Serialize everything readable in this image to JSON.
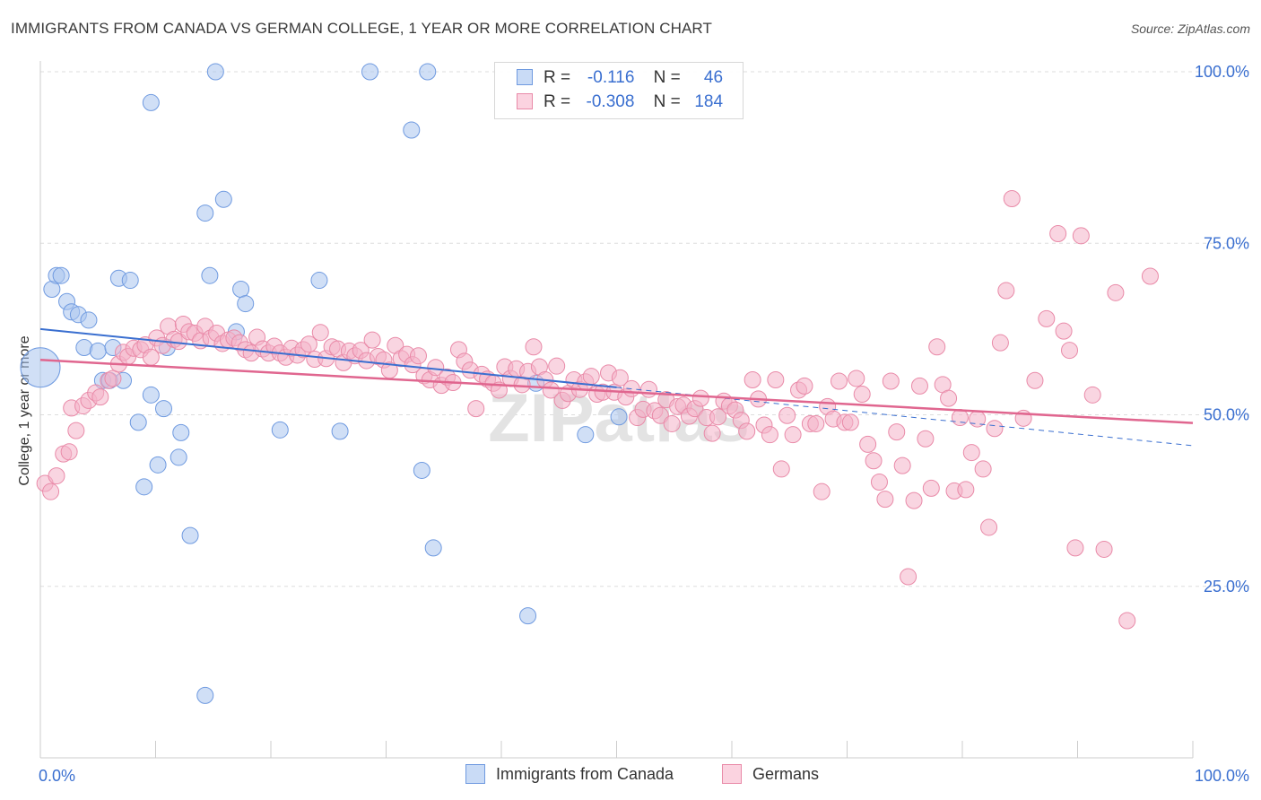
{
  "title": "IMMIGRANTS FROM CANADA VS GERMAN COLLEGE, 1 YEAR OR MORE CORRELATION CHART",
  "source": "Source: ZipAtlas.com",
  "watermark": "ZIPatlas",
  "legend_top": {
    "rows": [
      {
        "r_label": "R =",
        "r_value": "-0.116",
        "n_label": "N =",
        "n_value": "46",
        "color": "#a9c5ef"
      },
      {
        "r_label": "R =",
        "r_value": "-0.308",
        "n_label": "N =",
        "n_value": "184",
        "color": "#f4b3c8"
      }
    ]
  },
  "legend_bottom": {
    "items": [
      {
        "label": "Immigrants from Canada",
        "color": "#a9c5ef"
      },
      {
        "label": "Germans",
        "color": "#f4b3c8"
      }
    ]
  },
  "colors": {
    "blue_fill": "#a9c5ef",
    "blue_stroke": "#6f9ae0",
    "blue_line": "#3a6fd0",
    "pink_fill": "#f4b3c8",
    "pink_stroke": "#e98aa8",
    "pink_line": "#e0668f",
    "tick_text": "#3a6fd0",
    "grid": "#dddddd"
  },
  "chart_data": {
    "type": "scatter",
    "title": "IMMIGRANTS FROM CANADA VS GERMAN COLLEGE, 1 YEAR OR MORE CORRELATION CHART",
    "xlabel": "",
    "ylabel": "College, 1 year or more",
    "xlim": [
      0,
      100
    ],
    "ylim": [
      0,
      100
    ],
    "x_tick_labels": [
      "0.0%",
      "100.0%"
    ],
    "y_tick_labels": [
      "25.0%",
      "50.0%",
      "75.0%",
      "100.0%"
    ],
    "y_ticks": [
      25,
      50,
      75,
      100
    ],
    "grid": true,
    "series": [
      {
        "name": "Immigrants from Canada",
        "trend": {
          "x": [
            0,
            50
          ],
          "y": [
            62.5,
            54.0
          ],
          "dashed_to": [
            100,
            45.5
          ]
        },
        "points": [
          [
            0,
            56.9
          ],
          [
            1,
            68.3
          ],
          [
            1.4,
            70.3
          ],
          [
            1.8,
            70.3
          ],
          [
            2.3,
            66.5
          ],
          [
            2.7,
            65.0
          ],
          [
            3.3,
            64.6
          ],
          [
            4.2,
            63.8
          ],
          [
            3.8,
            59.8
          ],
          [
            5,
            59.3
          ],
          [
            6.3,
            59.8
          ],
          [
            5.4,
            55.0
          ],
          [
            6,
            55.0
          ],
          [
            7.2,
            55.0
          ],
          [
            6.8,
            69.9
          ],
          [
            7.8,
            69.6
          ],
          [
            8.5,
            48.9
          ],
          [
            9,
            39.5
          ],
          [
            9.6,
            52.9
          ],
          [
            9.6,
            95.5
          ],
          [
            10.2,
            42.7
          ],
          [
            10.7,
            50.9
          ],
          [
            11,
            59.8
          ],
          [
            12,
            43.8
          ],
          [
            12.2,
            47.4
          ],
          [
            13,
            32.4
          ],
          [
            14.3,
            79.4
          ],
          [
            14.7,
            70.3
          ],
          [
            15.2,
            100
          ],
          [
            15.9,
            81.4
          ],
          [
            17,
            62.1
          ],
          [
            17.4,
            68.3
          ],
          [
            17.8,
            66.2
          ],
          [
            20.8,
            47.8
          ],
          [
            24.2,
            69.6
          ],
          [
            26,
            47.6
          ],
          [
            28.6,
            100
          ],
          [
            32.2,
            91.5
          ],
          [
            33.1,
            41.9
          ],
          [
            33.6,
            100
          ],
          [
            34.1,
            30.6
          ],
          [
            42.3,
            20.7
          ],
          [
            43,
            54.6
          ],
          [
            47.3,
            47.1
          ],
          [
            50.2,
            49.7
          ],
          [
            14.3,
            9.1
          ]
        ]
      },
      {
        "name": "Germans",
        "trend": {
          "x": [
            0,
            100
          ],
          "y": [
            58.0,
            48.8
          ]
        },
        "points": [
          [
            0.4,
            40.0
          ],
          [
            0.9,
            38.8
          ],
          [
            1.4,
            41.1
          ],
          [
            2,
            44.3
          ],
          [
            2.5,
            44.6
          ],
          [
            2.7,
            51.0
          ],
          [
            3.1,
            47.7
          ],
          [
            3.7,
            51.3
          ],
          [
            4.2,
            52.1
          ],
          [
            4.8,
            53.2
          ],
          [
            5.2,
            52.6
          ],
          [
            5.9,
            55.0
          ],
          [
            6.3,
            55.3
          ],
          [
            6.8,
            57.4
          ],
          [
            7.2,
            59.1
          ],
          [
            7.6,
            58.5
          ],
          [
            8.1,
            59.7
          ],
          [
            8.7,
            59.5
          ],
          [
            9.1,
            60.2
          ],
          [
            9.6,
            58.4
          ],
          [
            10.1,
            61.2
          ],
          [
            10.6,
            60.1
          ],
          [
            11.1,
            62.9
          ],
          [
            11.6,
            61.0
          ],
          [
            12,
            60.7
          ],
          [
            12.4,
            63.2
          ],
          [
            12.9,
            62.1
          ],
          [
            13.4,
            61.9
          ],
          [
            13.9,
            60.8
          ],
          [
            14.3,
            62.9
          ],
          [
            14.8,
            61.2
          ],
          [
            15.3,
            61.9
          ],
          [
            15.8,
            60.4
          ],
          [
            16.3,
            60.9
          ],
          [
            16.8,
            61.2
          ],
          [
            17.3,
            60.5
          ],
          [
            17.8,
            59.5
          ],
          [
            18.3,
            59.0
          ],
          [
            18.8,
            61.3
          ],
          [
            19.3,
            59.6
          ],
          [
            19.8,
            59.0
          ],
          [
            20.3,
            60.0
          ],
          [
            20.8,
            59.0
          ],
          [
            21.3,
            58.4
          ],
          [
            21.8,
            59.7
          ],
          [
            22.3,
            58.7
          ],
          [
            22.8,
            59.5
          ],
          [
            23.3,
            60.3
          ],
          [
            23.8,
            58.1
          ],
          [
            24.3,
            62.0
          ],
          [
            24.8,
            58.2
          ],
          [
            25.3,
            59.9
          ],
          [
            25.8,
            59.6
          ],
          [
            26.3,
            57.6
          ],
          [
            26.8,
            59.3
          ],
          [
            27.3,
            58.6
          ],
          [
            27.8,
            59.4
          ],
          [
            28.3,
            57.9
          ],
          [
            28.8,
            60.9
          ],
          [
            29.3,
            58.5
          ],
          [
            29.8,
            58.0
          ],
          [
            30.3,
            56.5
          ],
          [
            30.8,
            60.1
          ],
          [
            31.3,
            58.2
          ],
          [
            31.8,
            58.8
          ],
          [
            32.3,
            57.3
          ],
          [
            32.8,
            58.6
          ],
          [
            33.3,
            55.7
          ],
          [
            33.8,
            55.1
          ],
          [
            34.3,
            56.9
          ],
          [
            34.8,
            54.3
          ],
          [
            35.3,
            55.5
          ],
          [
            35.8,
            54.7
          ],
          [
            36.3,
            59.5
          ],
          [
            36.8,
            57.8
          ],
          [
            37.3,
            56.5
          ],
          [
            37.8,
            50.9
          ],
          [
            38.3,
            55.9
          ],
          [
            38.8,
            55.2
          ],
          [
            39.3,
            54.6
          ],
          [
            39.8,
            53.6
          ],
          [
            40.3,
            57.0
          ],
          [
            40.8,
            55.3
          ],
          [
            41.3,
            56.7
          ],
          [
            41.8,
            54.4
          ],
          [
            42.3,
            56.3
          ],
          [
            42.8,
            59.9
          ],
          [
            43.3,
            57.0
          ],
          [
            43.8,
            55.1
          ],
          [
            44.3,
            53.6
          ],
          [
            44.8,
            57.1
          ],
          [
            45.3,
            52.1
          ],
          [
            45.8,
            53.1
          ],
          [
            46.3,
            55.1
          ],
          [
            46.8,
            53.7
          ],
          [
            47.3,
            54.8
          ],
          [
            47.8,
            55.6
          ],
          [
            48.3,
            53.0
          ],
          [
            48.8,
            53.3
          ],
          [
            49.3,
            56.1
          ],
          [
            49.8,
            53.3
          ],
          [
            50.3,
            55.4
          ],
          [
            50.8,
            52.6
          ],
          [
            51.3,
            53.8
          ],
          [
            51.8,
            49.6
          ],
          [
            52.3,
            50.8
          ],
          [
            52.8,
            53.7
          ],
          [
            53.3,
            50.6
          ],
          [
            53.8,
            49.9
          ],
          [
            54.3,
            52.2
          ],
          [
            54.8,
            48.7
          ],
          [
            55.3,
            51.2
          ],
          [
            55.8,
            51.4
          ],
          [
            56.3,
            49.8
          ],
          [
            56.8,
            50.9
          ],
          [
            57.3,
            52.4
          ],
          [
            57.8,
            49.6
          ],
          [
            58.3,
            47.3
          ],
          [
            58.8,
            49.7
          ],
          [
            59.3,
            52.0
          ],
          [
            59.8,
            51.3
          ],
          [
            60.3,
            50.7
          ],
          [
            60.8,
            49.2
          ],
          [
            61.3,
            47.6
          ],
          [
            61.8,
            55.1
          ],
          [
            62.3,
            52.3
          ],
          [
            62.8,
            48.5
          ],
          [
            63.3,
            47.1
          ],
          [
            63.8,
            55.1
          ],
          [
            64.3,
            42.1
          ],
          [
            64.8,
            49.9
          ],
          [
            65.3,
            47.1
          ],
          [
            65.8,
            53.6
          ],
          [
            66.3,
            54.2
          ],
          [
            66.8,
            48.7
          ],
          [
            67.3,
            48.7
          ],
          [
            67.8,
            38.8
          ],
          [
            68.3,
            51.2
          ],
          [
            68.8,
            49.4
          ],
          [
            69.3,
            54.9
          ],
          [
            69.8,
            48.9
          ],
          [
            70.3,
            48.9
          ],
          [
            70.8,
            55.3
          ],
          [
            71.3,
            53.0
          ],
          [
            71.8,
            45.7
          ],
          [
            72.3,
            43.3
          ],
          [
            72.8,
            40.2
          ],
          [
            73.3,
            37.7
          ],
          [
            73.8,
            54.9
          ],
          [
            74.3,
            47.5
          ],
          [
            74.8,
            42.6
          ],
          [
            75.3,
            26.4
          ],
          [
            75.8,
            37.5
          ],
          [
            76.3,
            54.2
          ],
          [
            76.8,
            46.5
          ],
          [
            77.3,
            39.3
          ],
          [
            77.8,
            59.9
          ],
          [
            78.3,
            54.4
          ],
          [
            78.8,
            52.4
          ],
          [
            79.3,
            38.9
          ],
          [
            79.8,
            49.6
          ],
          [
            80.3,
            39.1
          ],
          [
            80.8,
            44.5
          ],
          [
            81.3,
            49.4
          ],
          [
            81.8,
            42.1
          ],
          [
            82.3,
            33.6
          ],
          [
            82.8,
            48.0
          ],
          [
            83.3,
            60.5
          ],
          [
            83.8,
            68.1
          ],
          [
            84.3,
            81.5
          ],
          [
            85.3,
            49.5
          ],
          [
            86.3,
            55.0
          ],
          [
            87.3,
            64.0
          ],
          [
            88.3,
            76.4
          ],
          [
            88.8,
            62.2
          ],
          [
            89.3,
            59.4
          ],
          [
            89.8,
            30.6
          ],
          [
            90.3,
            76.1
          ],
          [
            91.3,
            52.9
          ],
          [
            92.3,
            30.4
          ],
          [
            93.3,
            67.8
          ],
          [
            94.3,
            20.0
          ],
          [
            96.3,
            70.2
          ]
        ]
      }
    ]
  }
}
